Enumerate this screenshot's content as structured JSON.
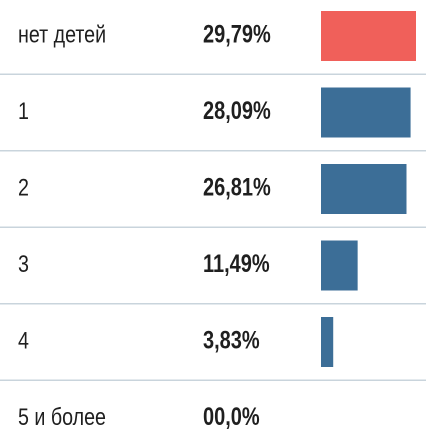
{
  "chart_data": {
    "type": "bar",
    "orientation": "horizontal",
    "categories": [
      "нет детей",
      "1",
      "2",
      "3",
      "4",
      "5 и более"
    ],
    "values": [
      29.79,
      28.09,
      26.81,
      11.49,
      3.83,
      0.0
    ],
    "value_labels": [
      "29,79%",
      "28,09%",
      "26,81%",
      "11,49%",
      "3,83%",
      "00,0%"
    ],
    "colors": [
      "#f0605a",
      "#3c6e97",
      "#3c6e97",
      "#3c6e97",
      "#3c6e97",
      "#3c6e97"
    ]
  }
}
